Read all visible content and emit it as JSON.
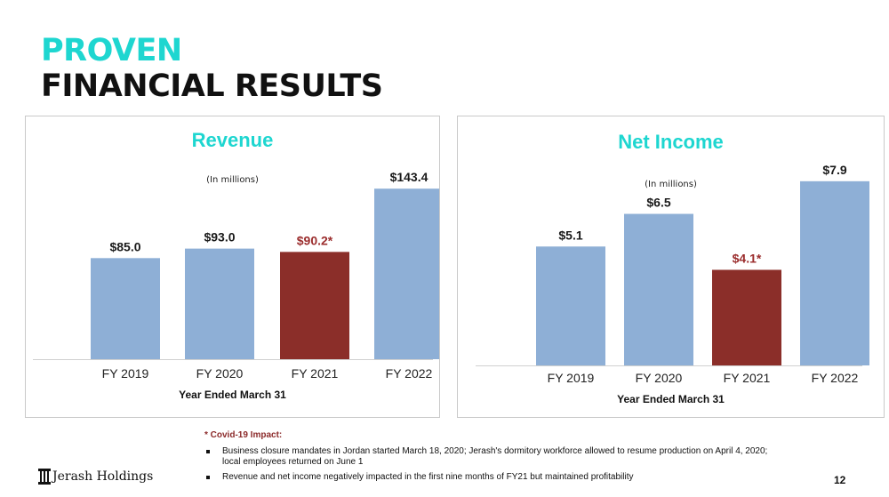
{
  "slide": {
    "title_line1": "PROVEN",
    "title_line2": "FINANCIAL RESULTS",
    "page_number": "12",
    "logo_text": "Jerash Holdings"
  },
  "colors": {
    "accent": "#1ed6d0",
    "bar_default": "#8eafd6",
    "bar_highlight": "#8b2e29",
    "label_highlight": "#9b2d2d"
  },
  "chart_data": [
    {
      "type": "bar",
      "title": "Revenue",
      "subtitle": "(In millions)",
      "xlabel": "Year Ended March 31",
      "ylabel": "",
      "categories": [
        "FY 2019",
        "FY 2020",
        "FY 2021",
        "FY 2022"
      ],
      "values": [
        85.0,
        93.0,
        90.2,
        143.4
      ],
      "data_labels": [
        "$85.0",
        "$93.0",
        "$90.2*",
        "$143.4"
      ],
      "highlight_index": 2,
      "ylim": [
        0,
        160
      ],
      "grid": false,
      "legend": "none"
    },
    {
      "type": "bar",
      "title": "Net Income",
      "subtitle": "(In millions)",
      "xlabel": "Year Ended March 31",
      "ylabel": "",
      "categories": [
        "FY 2019",
        "FY 2020",
        "FY 2021",
        "FY 2022"
      ],
      "values": [
        5.1,
        6.5,
        4.1,
        7.9
      ],
      "data_labels": [
        "$5.1",
        "$6.5",
        "$4.1*",
        "$7.9"
      ],
      "highlight_index": 2,
      "ylim": [
        0,
        9.0
      ],
      "grid": false,
      "legend": "none"
    }
  ],
  "footnote": {
    "title": "* Covid-19 Impact:",
    "items": [
      "Business closure mandates in Jordan started March 18, 2020; Jerash's dormitory workforce allowed to resume production on April 4, 2020; local employees returned on June 1",
      "Revenue and net income negatively impacted in the first nine months of FY21 but maintained profitability"
    ]
  }
}
